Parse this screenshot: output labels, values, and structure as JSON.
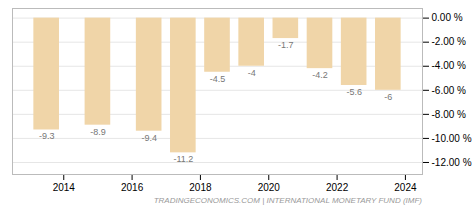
{
  "chart_data": {
    "type": "bar",
    "caption": "TRADINGECONOMICS.COM  |  INTERNATIONAL MONETARY FUND (IMF)",
    "x": [
      2013.5,
      2015.0,
      2016.5,
      2017.5,
      2018.5,
      2019.5,
      2020.5,
      2021.5,
      2022.5,
      2023.5
    ],
    "values": [
      -9.3,
      -8.9,
      -9.4,
      -11.2,
      -4.5,
      -4.0,
      -1.7,
      -4.2,
      -5.6,
      -6.0
    ],
    "color": "#f0d5a8",
    "xlim": [
      2012.5,
      2024.5
    ],
    "xticks": [
      2014,
      2016,
      2018,
      2020,
      2022,
      2024
    ],
    "ylim": [
      -13.0,
      0.8
    ],
    "yticks": [
      {
        "value": 0,
        "label": "0.00 %"
      },
      {
        "value": -2,
        "label": "-2.00 %"
      },
      {
        "value": -4,
        "label": "-4.00 %"
      },
      {
        "value": -6,
        "label": "-6.00 %"
      },
      {
        "value": -8,
        "label": "-8.00 %"
      },
      {
        "value": -10,
        "label": "-10.00 %"
      },
      {
        "value": -12,
        "label": "-12.00 %"
      }
    ],
    "grid": true,
    "data_labels": true
  }
}
